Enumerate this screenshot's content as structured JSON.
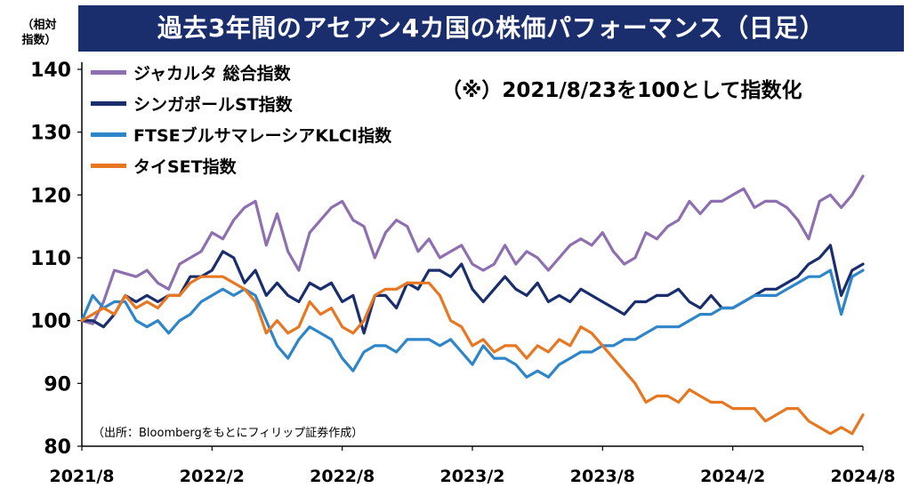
{
  "title": "過去3年間のアセアン4カ国の株価パフォーマンス（日足）",
  "unit_label_line1": "（相対",
  "unit_label_line2": "指数）",
  "note": "（※）2021/8/23を100として指数化",
  "source": "（出所：Bloombergをもとにフィリップ証券作成）",
  "chart_data": {
    "type": "line",
    "title": "過去3年間のアセアン4カ国の株価パフォーマンス（日足）",
    "ylabel": "（相対指数）",
    "xlabel": "",
    "ylim": [
      80,
      140
    ],
    "yticks": [
      80,
      90,
      100,
      110,
      120,
      130,
      140
    ],
    "xlim": [
      0,
      36
    ],
    "xticks": [
      {
        "x": 0,
        "label": "2021/8"
      },
      {
        "x": 6,
        "label": "2022/2"
      },
      {
        "x": 12,
        "label": "2022/8"
      },
      {
        "x": 18,
        "label": "2023/2"
      },
      {
        "x": 24,
        "label": "2023/8"
      },
      {
        "x": 30,
        "label": "2024/2"
      },
      {
        "x": 36,
        "label": "2024/8"
      }
    ],
    "grid": false,
    "legend_position": "top-left",
    "series": [
      {
        "name": "ジャカルタ 総合指数",
        "color": "#8e6fb0",
        "x": [
          0,
          0.5,
          1,
          1.5,
          2,
          2.5,
          3,
          3.5,
          4,
          4.5,
          5,
          5.5,
          6,
          6.5,
          7,
          7.5,
          8,
          8.5,
          9,
          9.5,
          10,
          10.5,
          11,
          11.5,
          12,
          12.5,
          13,
          13.5,
          14,
          14.5,
          15,
          15.5,
          16,
          16.5,
          17,
          17.5,
          18,
          18.5,
          19,
          19.5,
          20,
          20.5,
          21,
          21.5,
          22,
          22.5,
          23,
          23.5,
          24,
          24.5,
          25,
          25.5,
          26,
          26.5,
          27,
          27.5,
          28,
          28.5,
          29,
          29.5,
          30,
          30.5,
          31,
          31.5,
          32,
          32.5,
          33,
          33.5,
          34,
          34.5,
          35,
          35.5,
          36
        ],
        "values": [
          100,
          99.5,
          103,
          108,
          107.5,
          107,
          108,
          106,
          105,
          109,
          110,
          111,
          114,
          113,
          116,
          118,
          119,
          112,
          117,
          111,
          108,
          114,
          116,
          118,
          119,
          116,
          115,
          110,
          114,
          116,
          115,
          111,
          113,
          110,
          111,
          112,
          109,
          108,
          109,
          112,
          109,
          111,
          110,
          108,
          110,
          112,
          113,
          112,
          114,
          111,
          109,
          110,
          114,
          113,
          115,
          116,
          119,
          117,
          119,
          119,
          120,
          121,
          118,
          119,
          119,
          118,
          116,
          113,
          119,
          120,
          118,
          120,
          123
        ]
      },
      {
        "name": "シンガポールST指数",
        "color": "#1a2e6e",
        "x": [
          0,
          0.5,
          1,
          1.5,
          2,
          2.5,
          3,
          3.5,
          4,
          4.5,
          5,
          5.5,
          6,
          6.5,
          7,
          7.5,
          8,
          8.5,
          9,
          9.5,
          10,
          10.5,
          11,
          11.5,
          12,
          12.5,
          13,
          13.5,
          14,
          14.5,
          15,
          15.5,
          16,
          16.5,
          17,
          17.5,
          18,
          18.5,
          19,
          19.5,
          20,
          20.5,
          21,
          21.5,
          22,
          22.5,
          23,
          23.5,
          24,
          24.5,
          25,
          25.5,
          26,
          26.5,
          27,
          27.5,
          28,
          28.5,
          29,
          29.5,
          30,
          30.5,
          31,
          31.5,
          32,
          32.5,
          33,
          33.5,
          34,
          34.5,
          35,
          35.5,
          36
        ],
        "values": [
          100,
          100,
          99,
          101,
          104,
          103,
          104,
          103,
          104,
          104,
          107,
          107,
          108,
          111,
          110,
          106,
          108,
          104,
          106,
          104,
          103,
          106,
          105,
          106,
          103,
          104,
          98,
          104,
          104,
          102,
          106,
          105,
          108,
          108,
          107,
          109,
          105,
          103,
          105,
          107,
          105,
          104,
          106,
          103,
          104,
          103,
          105,
          104,
          103,
          102,
          101,
          103,
          103,
          104,
          104,
          105,
          103,
          102,
          104,
          102,
          102,
          103,
          104,
          105,
          105,
          106,
          107,
          109,
          110,
          112,
          104,
          108,
          109
        ]
      },
      {
        "name": "FTSEブルサマレーシアKLCI指数",
        "color": "#2e86c9",
        "x": [
          0,
          0.5,
          1,
          1.5,
          2,
          2.5,
          3,
          3.5,
          4,
          4.5,
          5,
          5.5,
          6,
          6.5,
          7,
          7.5,
          8,
          8.5,
          9,
          9.5,
          10,
          10.5,
          11,
          11.5,
          12,
          12.5,
          13,
          13.5,
          14,
          14.5,
          15,
          15.5,
          16,
          16.5,
          17,
          17.5,
          18,
          18.5,
          19,
          19.5,
          20,
          20.5,
          21,
          21.5,
          22,
          22.5,
          23,
          23.5,
          24,
          24.5,
          25,
          25.5,
          26,
          26.5,
          27,
          27.5,
          28,
          28.5,
          29,
          29.5,
          30,
          30.5,
          31,
          31.5,
          32,
          32.5,
          33,
          33.5,
          34,
          34.5,
          35,
          35.5,
          36
        ],
        "values": [
          100,
          104,
          102,
          103,
          103,
          100,
          99,
          100,
          98,
          100,
          101,
          103,
          104,
          105,
          104,
          105,
          104,
          100,
          96,
          94,
          97,
          99,
          98,
          97,
          94,
          92,
          95,
          96,
          96,
          95,
          97,
          97,
          97,
          96,
          97,
          95,
          93,
          96,
          94,
          94,
          93,
          91,
          92,
          91,
          93,
          94,
          95,
          95,
          96,
          96,
          97,
          97,
          98,
          99,
          99,
          99,
          100,
          101,
          101,
          102,
          102,
          103,
          104,
          104,
          104,
          105,
          106,
          107,
          107,
          108,
          101,
          107,
          108
        ]
      },
      {
        "name": "タイSET指数",
        "color": "#e87722",
        "x": [
          0,
          0.5,
          1,
          1.5,
          2,
          2.5,
          3,
          3.5,
          4,
          4.5,
          5,
          5.5,
          6,
          6.5,
          7,
          7.5,
          8,
          8.5,
          9,
          9.5,
          10,
          10.5,
          11,
          11.5,
          12,
          12.5,
          13,
          13.5,
          14,
          14.5,
          15,
          15.5,
          16,
          16.5,
          17,
          17.5,
          18,
          18.5,
          19,
          19.5,
          20,
          20.5,
          21,
          21.5,
          22,
          22.5,
          23,
          23.5,
          24,
          24.5,
          25,
          25.5,
          26,
          26.5,
          27,
          27.5,
          28,
          28.5,
          29,
          29.5,
          30,
          30.5,
          31,
          31.5,
          32,
          32.5,
          33,
          33.5,
          34,
          34.5,
          35,
          35.5,
          36
        ],
        "values": [
          100,
          101,
          102,
          101,
          104,
          102,
          103,
          102,
          104,
          104,
          106,
          107,
          107,
          107,
          106,
          105,
          103,
          98,
          100,
          98,
          99,
          103,
          101,
          102,
          99,
          98,
          100,
          104,
          105,
          105,
          106,
          106,
          106,
          104,
          100,
          99,
          96,
          97,
          95,
          96,
          96,
          94,
          96,
          95,
          97,
          96,
          99,
          98,
          96,
          94,
          92,
          90,
          87,
          88,
          88,
          87,
          89,
          88,
          87,
          87,
          86,
          86,
          86,
          84,
          85,
          86,
          86,
          84,
          83,
          82,
          83,
          82,
          85
        ]
      }
    ]
  }
}
